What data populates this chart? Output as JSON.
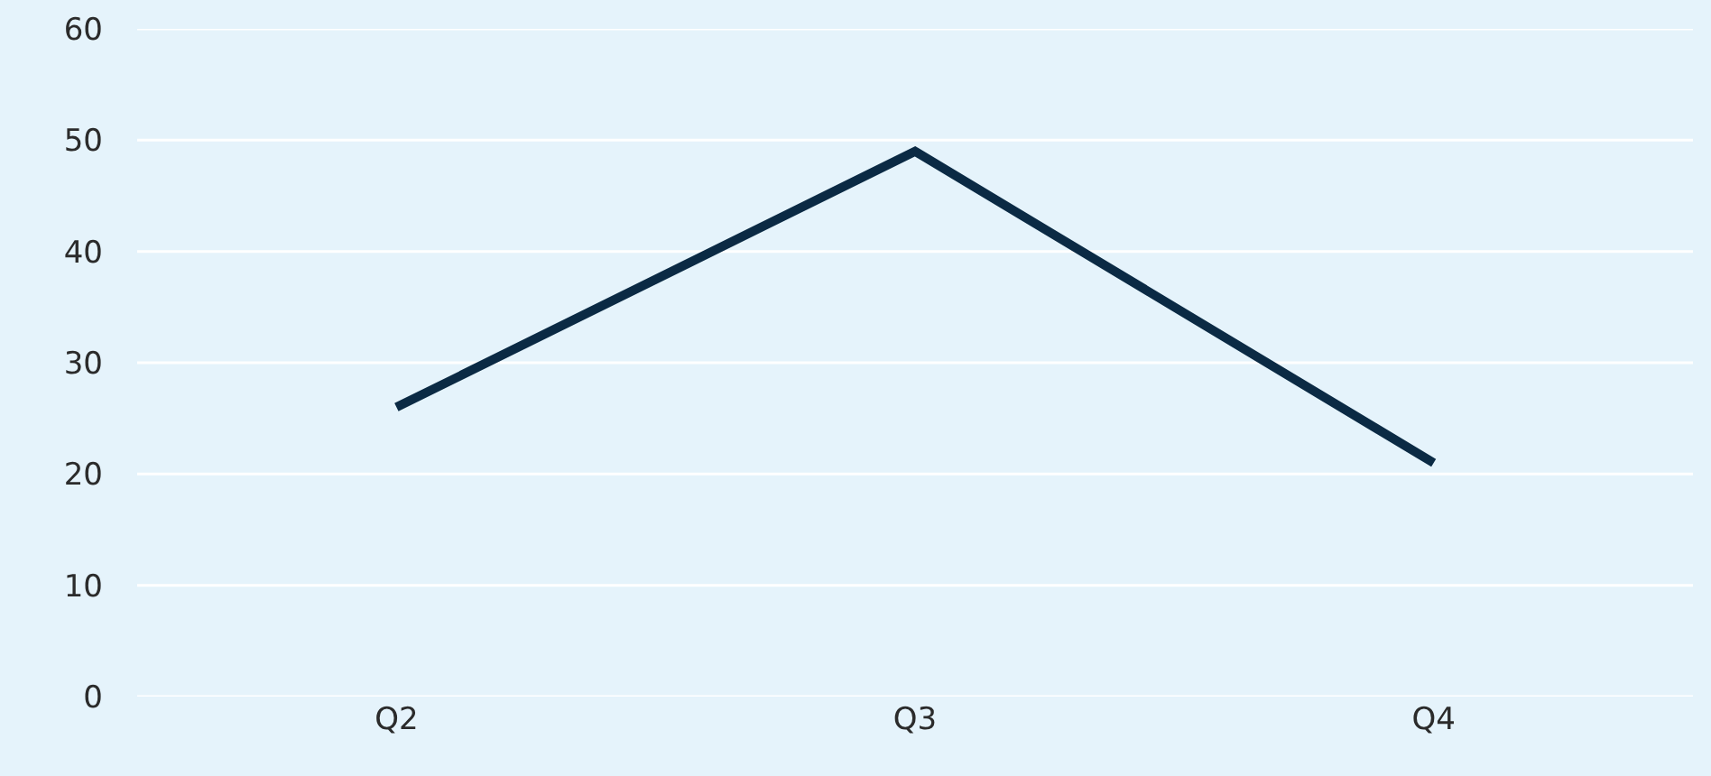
{
  "chart_data": {
    "type": "line",
    "categories": [
      "Q2",
      "Q3",
      "Q4"
    ],
    "series": [
      {
        "color": "#0b2a44",
        "values": [
          26,
          49,
          21
        ]
      }
    ],
    "ylim": [
      0,
      60
    ],
    "yticks": [
      0,
      10,
      20,
      30,
      40,
      50,
      60
    ],
    "grid": "y",
    "marker": "none",
    "line_style": "solid"
  }
}
